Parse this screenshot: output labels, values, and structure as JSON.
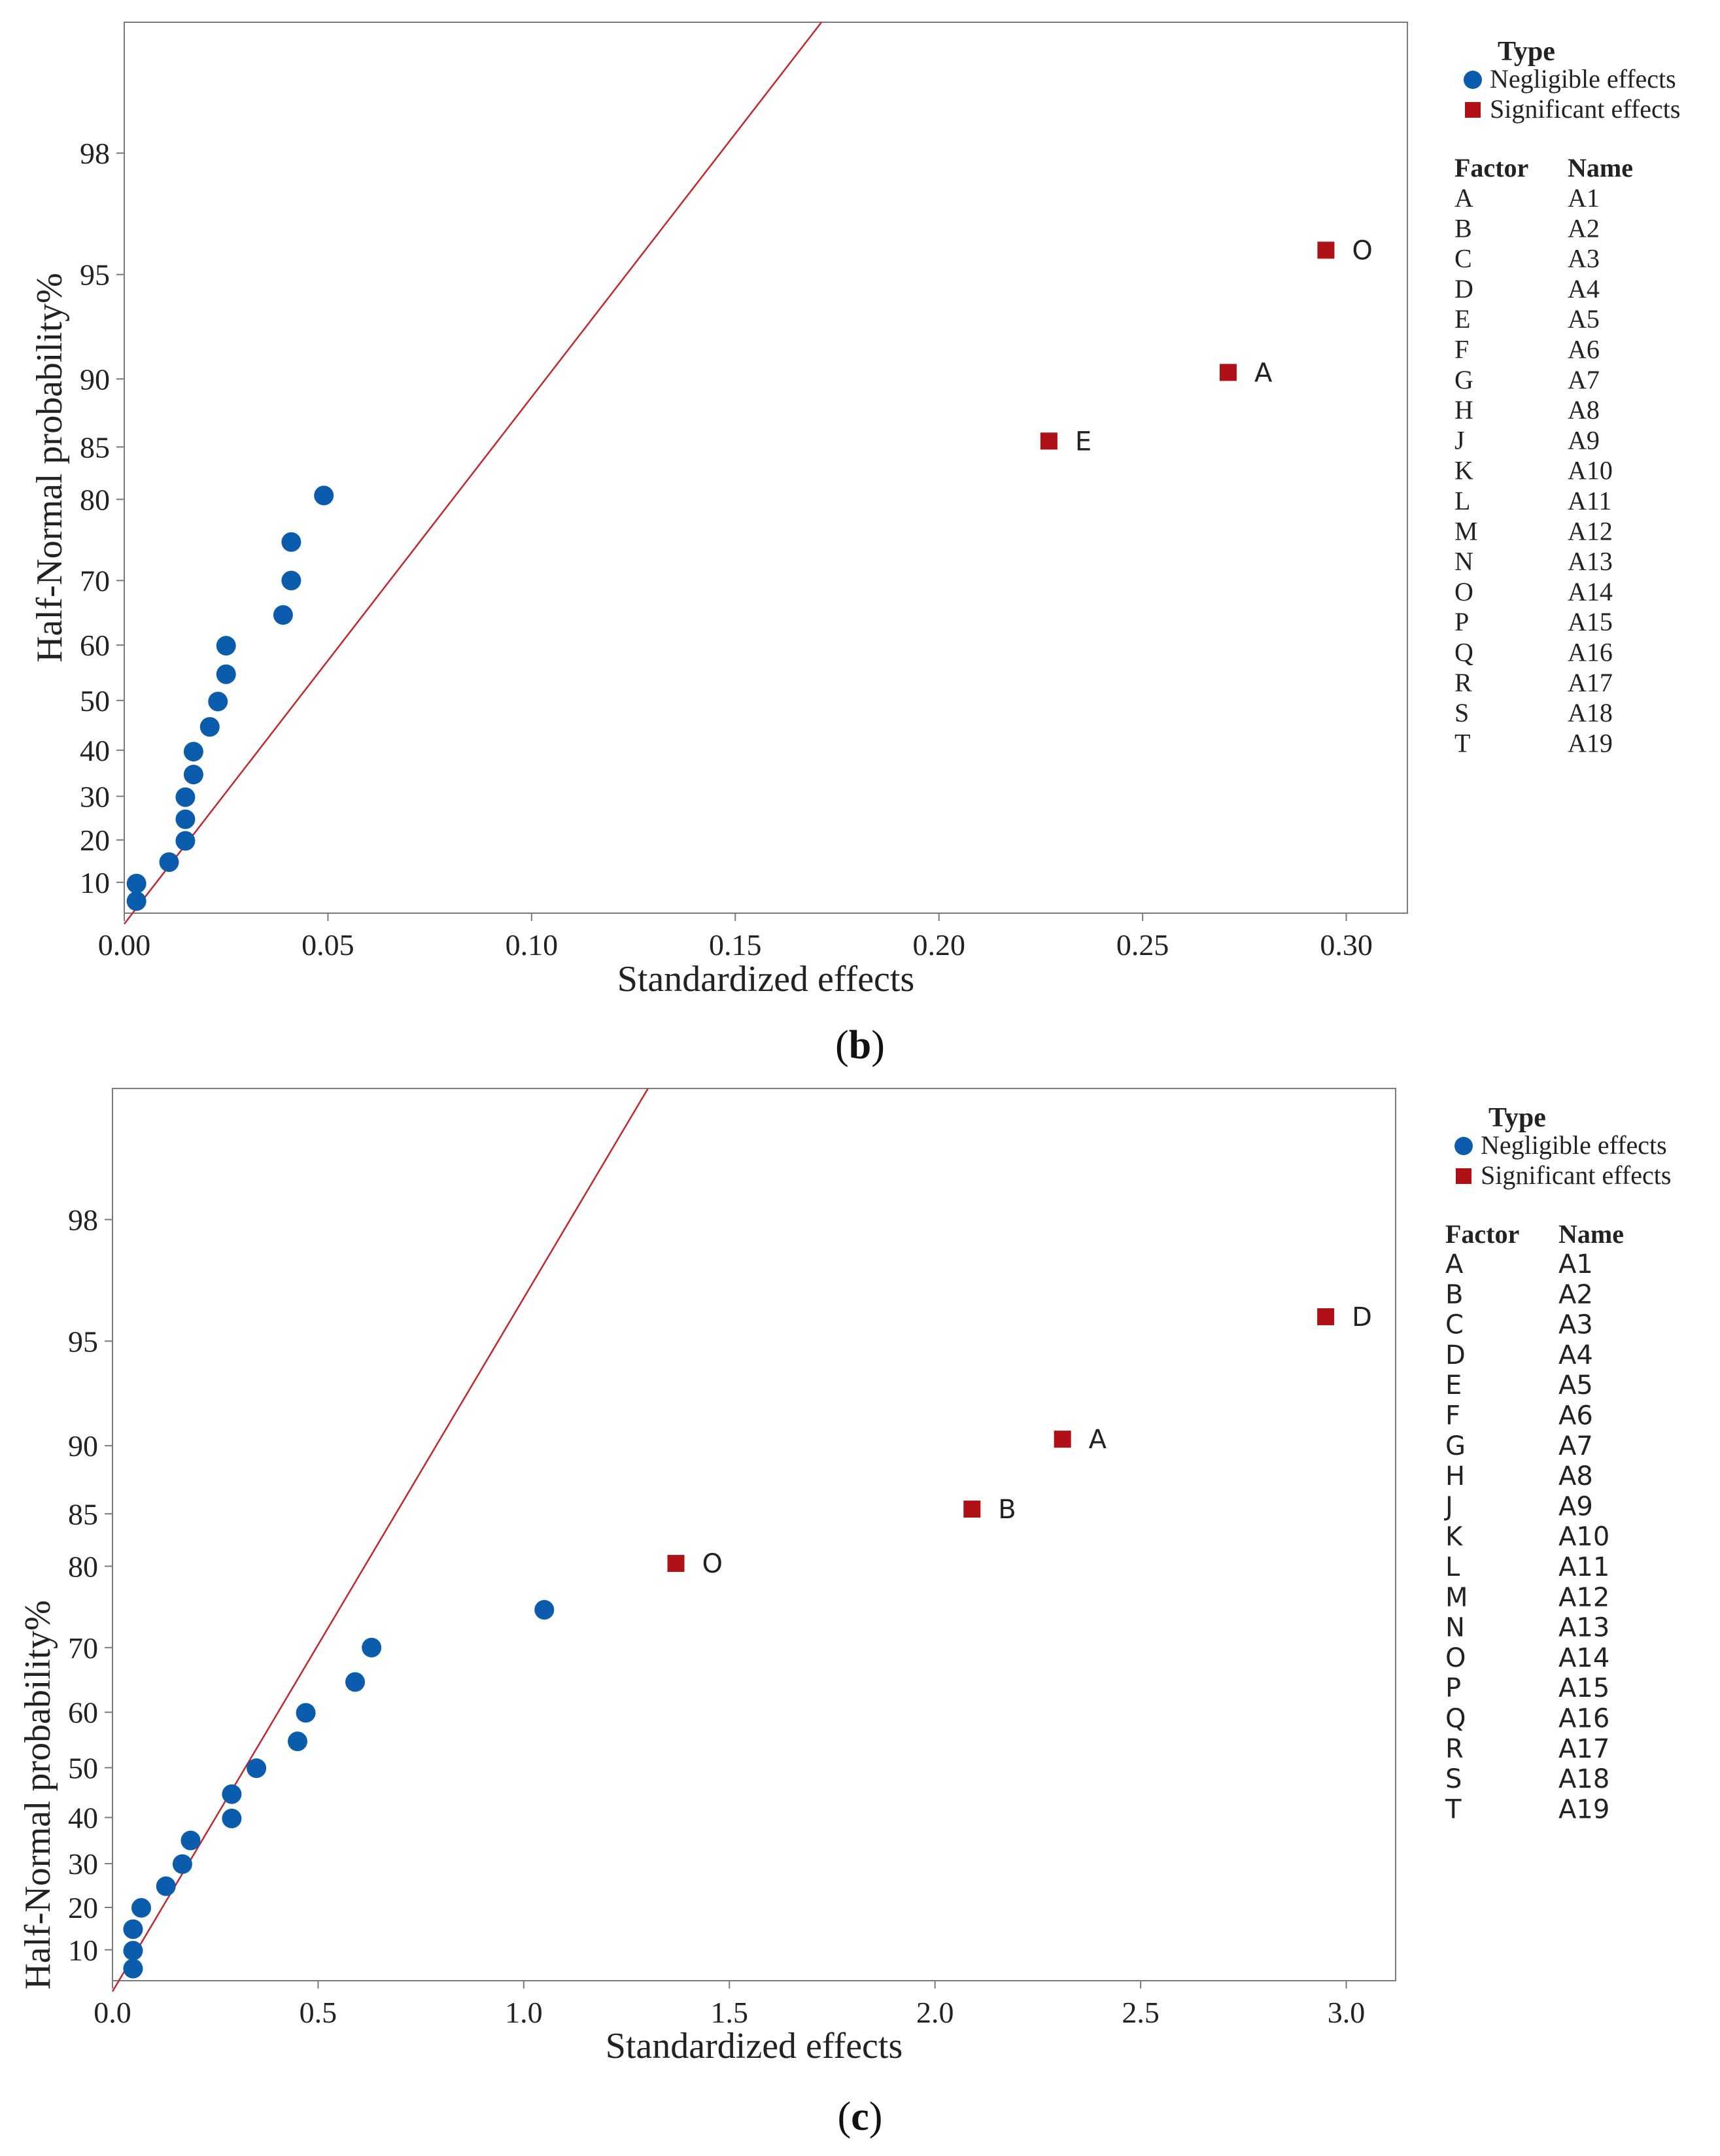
{
  "chart_data": [
    {
      "type": "scatter",
      "panel_label": "b",
      "title": "",
      "xlabel": "Standardized effects",
      "ylabel": "Half-Normal probability%",
      "xlim": [
        0,
        0.315
      ],
      "x_ticks": [
        0.0,
        0.05,
        0.1,
        0.15,
        0.2,
        0.25,
        0.3
      ],
      "x_tick_labels": [
        "0.00",
        "0.05",
        "0.10",
        "0.15",
        "0.20",
        "0.25",
        "0.30"
      ],
      "y_ticks": [
        10,
        20,
        30,
        40,
        50,
        60,
        70,
        80,
        85,
        90,
        95,
        98
      ],
      "y_tick_labels": [
        "10",
        "20",
        "30",
        "40",
        "50",
        "60",
        "70",
        "80",
        "85",
        "90",
        "95",
        "98"
      ],
      "ylim_prob": [
        2.6,
        99.35
      ],
      "reference_line": {
        "slope_sigma_per_unit": 15.9,
        "color": "#c0282d"
      },
      "legend": {
        "title": "Type",
        "entries": [
          {
            "label": "Negligible effects",
            "color": "#0b5cad",
            "marker": "circle"
          },
          {
            "label": "Significant effects",
            "color": "#b01116",
            "marker": "square"
          }
        ],
        "factor_header": "Factor",
        "name_header": "Name",
        "factors": [
          "A",
          "B",
          "C",
          "D",
          "E",
          "F",
          "G",
          "H",
          "J",
          "K",
          "L",
          "M",
          "N",
          "O",
          "P",
          "Q",
          "R",
          "S",
          "T"
        ],
        "names": [
          "A1",
          "A2",
          "A3",
          "A4",
          "A5",
          "A6",
          "A7",
          "A8",
          "A9",
          "A10",
          "A11",
          "A12",
          "A13",
          "A14",
          "A15",
          "A16",
          "A17",
          "A18",
          "A19"
        ]
      },
      "series": [
        {
          "name": "Negligible effects",
          "marker": "circle",
          "color": "#0b5cad",
          "points": [
            {
              "x": 0.003,
              "y": 5.5
            },
            {
              "x": 0.003,
              "y": 9.7
            },
            {
              "x": 0.011,
              "y": 14.8
            },
            {
              "x": 0.015,
              "y": 19.8
            },
            {
              "x": 0.015,
              "y": 24.8
            },
            {
              "x": 0.015,
              "y": 29.8
            },
            {
              "x": 0.017,
              "y": 34.8
            },
            {
              "x": 0.017,
              "y": 39.7
            },
            {
              "x": 0.021,
              "y": 44.8
            },
            {
              "x": 0.023,
              "y": 49.8
            },
            {
              "x": 0.025,
              "y": 54.9
            },
            {
              "x": 0.025,
              "y": 59.9
            },
            {
              "x": 0.039,
              "y": 64.9
            },
            {
              "x": 0.041,
              "y": 70.0
            },
            {
              "x": 0.041,
              "y": 75.1
            },
            {
              "x": 0.049,
              "y": 80.4
            }
          ]
        },
        {
          "name": "Significant effects",
          "marker": "square",
          "color": "#b01116",
          "points": [
            {
              "x": 0.227,
              "y": 85.5,
              "label": "E"
            },
            {
              "x": 0.271,
              "y": 90.4,
              "label": "A"
            },
            {
              "x": 0.295,
              "y": 95.8,
              "label": "O"
            }
          ]
        }
      ]
    },
    {
      "type": "scatter",
      "panel_label": "c",
      "title": "",
      "xlabel": "Standardized effects",
      "ylabel": "Half-Normal probability%",
      "xlim": [
        0,
        3.12
      ],
      "x_ticks": [
        0.0,
        0.5,
        1.0,
        1.5,
        2.0,
        2.5,
        3.0
      ],
      "x_tick_labels": [
        "0.0",
        "0.5",
        "1.0",
        "1.5",
        "2.0",
        "2.5",
        "3.0"
      ],
      "y_ticks": [
        10,
        20,
        30,
        40,
        50,
        60,
        70,
        80,
        85,
        90,
        95,
        98
      ],
      "y_tick_labels": [
        "10",
        "20",
        "30",
        "40",
        "50",
        "60",
        "70",
        "80",
        "85",
        "90",
        "95",
        "98"
      ],
      "ylim_prob": [
        2.6,
        99.35
      ],
      "reference_line": {
        "slope_sigma_per_unit": 2.09,
        "color": "#c0282d"
      },
      "legend": {
        "title": "Type",
        "entries": [
          {
            "label": "Negligible effects",
            "color": "#0b5cad",
            "marker": "circle"
          },
          {
            "label": "Significant effects",
            "color": "#b01116",
            "marker": "square"
          }
        ],
        "factor_header": "Factor",
        "name_header": "Name",
        "factors": [
          "A",
          "B",
          "C",
          "D",
          "E",
          "F",
          "G",
          "H",
          "J",
          "K",
          "L",
          "M",
          "N",
          "O",
          "P",
          "Q",
          "R",
          "S",
          "T"
        ],
        "names": [
          "A1",
          "A2",
          "A3",
          "A4",
          "A5",
          "A6",
          "A7",
          "A8",
          "A9",
          "A10",
          "A11",
          "A12",
          "A13",
          "A14",
          "A15",
          "A16",
          "A17",
          "A18",
          "A19"
        ]
      },
      "series": [
        {
          "name": "Negligible effects",
          "marker": "circle",
          "color": "#0b5cad",
          "points": [
            {
              "x": 0.05,
              "y": 5.5
            },
            {
              "x": 0.05,
              "y": 9.8
            },
            {
              "x": 0.05,
              "y": 14.9
            },
            {
              "x": 0.07,
              "y": 19.9
            },
            {
              "x": 0.13,
              "y": 24.9
            },
            {
              "x": 0.17,
              "y": 29.9
            },
            {
              "x": 0.19,
              "y": 35.1
            },
            {
              "x": 0.29,
              "y": 39.8
            },
            {
              "x": 0.29,
              "y": 44.8
            },
            {
              "x": 0.35,
              "y": 49.9
            },
            {
              "x": 0.45,
              "y": 54.9
            },
            {
              "x": 0.47,
              "y": 59.9
            },
            {
              "x": 0.59,
              "y": 64.9
            },
            {
              "x": 0.63,
              "y": 70.0
            },
            {
              "x": 1.05,
              "y": 75.0
            }
          ]
        },
        {
          "name": "Significant effects",
          "marker": "square",
          "color": "#b01116",
          "points": [
            {
              "x": 1.37,
              "y": 80.3,
              "label": "O"
            },
            {
              "x": 2.09,
              "y": 85.4,
              "label": "B"
            },
            {
              "x": 2.31,
              "y": 90.4,
              "label": "A"
            },
            {
              "x": 2.95,
              "y": 95.8,
              "label": "D"
            }
          ]
        }
      ]
    }
  ]
}
